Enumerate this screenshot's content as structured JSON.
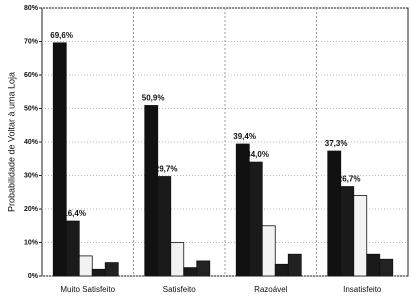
{
  "chart_data": {
    "type": "bar",
    "y_label": "Probabilidade de Voltar à uma Loja",
    "categories": [
      "Muito Satisfeito",
      "Satisfeito",
      "Razoável",
      "Insatisfeito"
    ],
    "series": [
      {
        "color": "#111111",
        "values": [
          69.6,
          50.9,
          39.4,
          37.3
        ],
        "value_labels": [
          "69,6%",
          "50,9%",
          "39,4%",
          "37,3%"
        ]
      },
      {
        "color": "#1a1a1a",
        "values": [
          16.4,
          29.7,
          34.0,
          26.7
        ],
        "value_labels": [
          "16,4%",
          "29,7%",
          "34,0%",
          "26,7%"
        ]
      },
      {
        "color": "#f2f2f2",
        "values": [
          6,
          10,
          15,
          24
        ]
      },
      {
        "color": "#1a1a1a",
        "values": [
          2,
          2.5,
          3.5,
          6.5
        ]
      },
      {
        "color": "#222222",
        "values": [
          4,
          4.5,
          6.5,
          5
        ]
      }
    ],
    "ylim": [
      0,
      80
    ],
    "yticks": [
      {
        "value": 0,
        "label": "0%"
      },
      {
        "value": 10,
        "label": "10%"
      },
      {
        "value": 20,
        "label": "20%"
      },
      {
        "value": 30,
        "label": "30%"
      },
      {
        "value": 40,
        "label": "40%"
      },
      {
        "value": 50,
        "label": "50%"
      },
      {
        "value": 60,
        "label": "60%"
      },
      {
        "value": 70,
        "label": "70%"
      },
      {
        "value": 80,
        "label": "80%"
      }
    ],
    "grid": true
  }
}
